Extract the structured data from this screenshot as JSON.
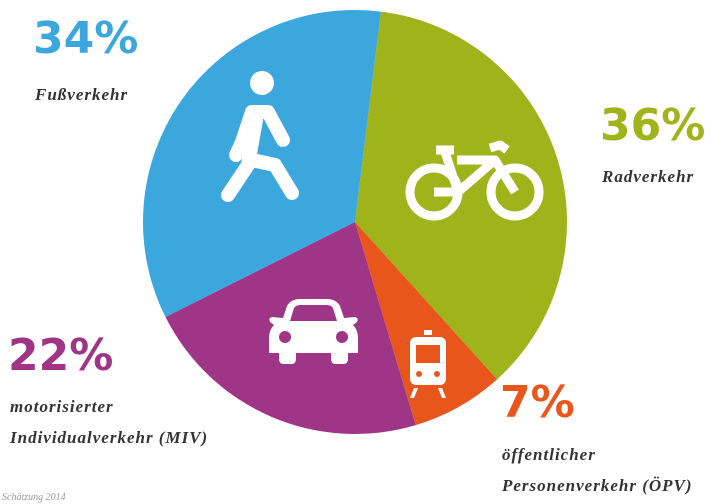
{
  "chart_data": {
    "type": "pie",
    "categories": [
      [
        "Radverkehr"
      ],
      [
        "öffentlicher",
        "Personenverkehr (ÖPV)"
      ],
      [
        "motorisierter",
        "Individualverkehr (MIV)"
      ],
      [
        "Fußverkehr"
      ]
    ],
    "values": [
      36,
      7,
      22,
      34
    ],
    "value_labels": [
      "36%",
      "7%",
      "22%",
      "34%"
    ],
    "colors": [
      "#9fb31b",
      "#e8561c",
      "#9f3587",
      "#3ba7dc"
    ],
    "footnote": "Schätzung 2014"
  }
}
